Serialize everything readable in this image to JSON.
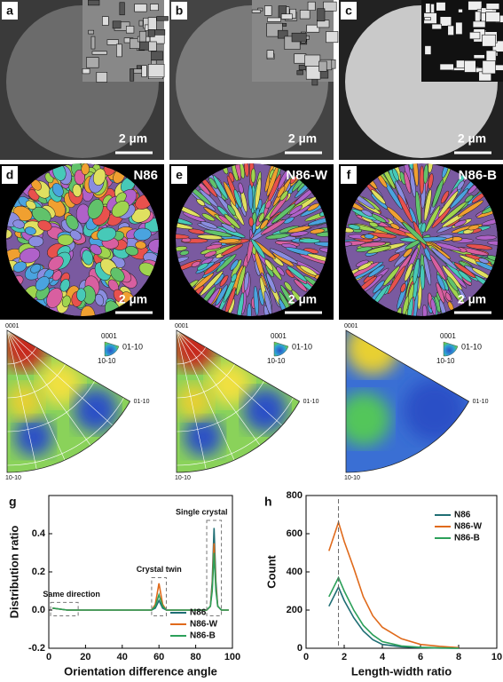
{
  "panels": [
    {
      "label": "a",
      "scale": "2 µm"
    },
    {
      "label": "b",
      "scale": "2 µm"
    },
    {
      "label": "c",
      "scale": "2 µm"
    },
    {
      "label": "d",
      "sample": "N86",
      "scale": "2 µm"
    },
    {
      "label": "e",
      "sample": "N86-W",
      "scale": "2 µm"
    },
    {
      "label": "f",
      "sample": "N86-B",
      "scale": "2 µm"
    }
  ],
  "pole_figure_labels": {
    "top": "0001",
    "right": "01-10",
    "bottom": "10-10",
    "key_top": "0001",
    "key_right": "01-10",
    "key_bottom": "10-10"
  },
  "chart_data": [
    {
      "type": "line",
      "label": "g",
      "x_label": "Orientation difference angle",
      "y_label": "Distribution ratio",
      "xlim": [
        0,
        100
      ],
      "xticks": [
        0,
        20,
        40,
        60,
        80,
        100
      ],
      "ylim": [
        -0.2,
        0.6
      ],
      "yticks": [
        -0.2,
        {
          "value": 0,
          "label": "0.0"
        },
        0.2,
        0.4
      ],
      "annotations": [
        "Same direction",
        "Crystal twin",
        "Single crystal"
      ],
      "legend": "lower right",
      "x": [
        2,
        10,
        20,
        30,
        40,
        50,
        56,
        58,
        60,
        62,
        64,
        70,
        80,
        86,
        88,
        89,
        90,
        91,
        92,
        94,
        98
      ],
      "series": [
        {
          "name": "N86",
          "color": "#1f6e74",
          "values": [
            0.01,
            0.0,
            0.0,
            0.0,
            0.0,
            0.0,
            0.0,
            0.01,
            0.05,
            0.01,
            0.0,
            0.0,
            0.0,
            0.0,
            0.02,
            0.15,
            0.43,
            0.15,
            0.02,
            0.0,
            0.0
          ]
        },
        {
          "name": "N86-W",
          "color": "#e06a1b",
          "values": [
            0.01,
            0.0,
            0.0,
            0.0,
            0.0,
            0.0,
            0.0,
            0.03,
            0.14,
            0.03,
            0.0,
            0.0,
            0.0,
            0.0,
            0.02,
            0.12,
            0.35,
            0.12,
            0.02,
            0.0,
            0.0
          ]
        },
        {
          "name": "N86-B",
          "color": "#2ca05a",
          "values": [
            0.01,
            0.0,
            0.0,
            0.0,
            0.0,
            0.0,
            0.0,
            0.02,
            0.08,
            0.02,
            0.0,
            0.0,
            0.0,
            0.0,
            0.02,
            0.1,
            0.3,
            0.1,
            0.02,
            0.0,
            0.0
          ]
        }
      ]
    },
    {
      "type": "line",
      "label": "h",
      "x_label": "Length-width ratio",
      "y_label": "Count",
      "xlim": [
        0,
        10
      ],
      "xticks": [
        0,
        2,
        4,
        6,
        8,
        10
      ],
      "ylim": [
        0,
        800
      ],
      "yticks": [
        0,
        200,
        400,
        600,
        800
      ],
      "legend": "upper right",
      "x": [
        1.2,
        1.7,
        2,
        2.5,
        3,
        3.5,
        4,
        5,
        6,
        7,
        8
      ],
      "series": [
        {
          "name": "N86",
          "color": "#1f6e74",
          "values": [
            220,
            320,
            250,
            160,
            90,
            45,
            20,
            8,
            3,
            1,
            0
          ]
        },
        {
          "name": "N86-W",
          "color": "#e06a1b",
          "values": [
            510,
            660,
            560,
            420,
            270,
            170,
            110,
            50,
            20,
            10,
            3
          ]
        },
        {
          "name": "N86-B",
          "color": "#2ca05a",
          "values": [
            270,
            370,
            300,
            200,
            120,
            70,
            35,
            12,
            5,
            2,
            0
          ]
        }
      ]
    }
  ]
}
